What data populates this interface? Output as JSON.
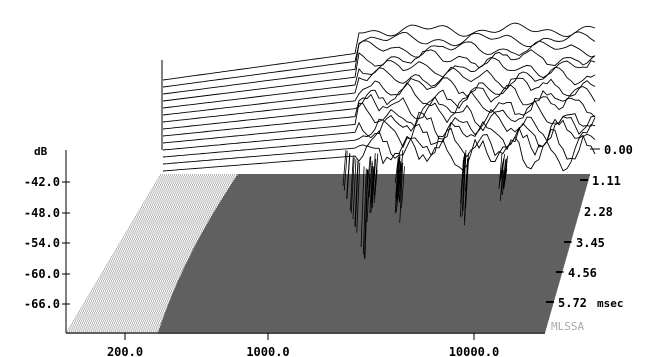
{
  "chart_data": {
    "type": "waterfall",
    "ylabel": "dB",
    "y_ticks": [
      "-42.0",
      "-48.0",
      "-54.0",
      "-60.0",
      "-66.0"
    ],
    "x_ticks": [
      "200.0",
      "1000.0",
      "10000.0"
    ],
    "time_ticks": [
      "0.00",
      "1.11",
      "2.28",
      "3.45",
      "4.56",
      "5.72"
    ],
    "time_unit": "msec",
    "watermark": "MLSSA",
    "x_scale": "log",
    "frequency_range_hz": [
      100,
      20000
    ],
    "level_range_db": [
      -69,
      -36
    ],
    "time_range_ms": [
      0.0,
      5.72
    ],
    "slice_count": 80
  }
}
